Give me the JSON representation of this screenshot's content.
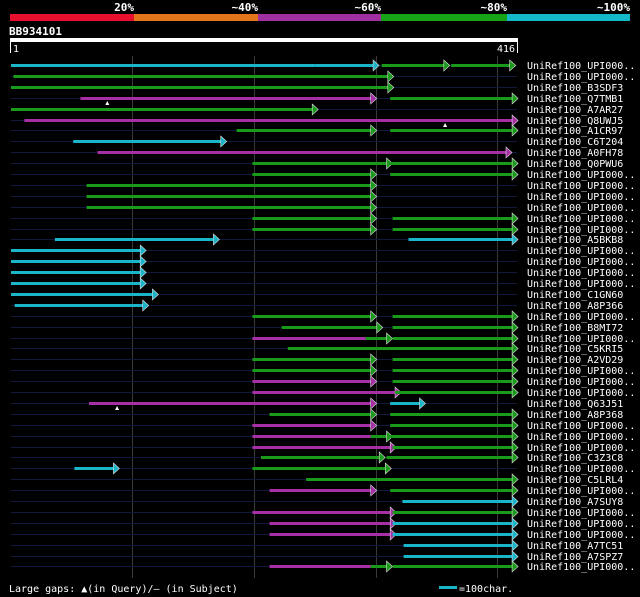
{
  "header": {
    "pct_labels": [
      "20%",
      "~40%",
      "~60%",
      "~80%",
      "~100%"
    ],
    "pct_colors": [
      "#e8102e",
      "#e3761a",
      "#a02fa0",
      "#17a317",
      "#13b8c9"
    ],
    "query_id": "BB934101",
    "start": "1",
    "end": "416"
  },
  "query_length": 416,
  "colors": {
    "red": "#e8102e",
    "orange": "#e3761a",
    "magenta": "#a62fa6",
    "green": "#1a9a1a",
    "cyan": "#1bb5c9",
    "track": "#101840"
  },
  "rows": [
    {
      "label": "UniRef100_UPI000..",
      "segs": [
        {
          "s": 1,
          "e": 251,
          "c": "cyan"
        },
        {
          "s": 251,
          "e": 298,
          "c": "cyan",
          "arrow": 1
        },
        {
          "s": 305,
          "e": 356,
          "c": "green",
          "arrow": 1
        },
        {
          "s": 362,
          "e": 410,
          "c": "green",
          "arrow": 1
        }
      ],
      "gaps": []
    },
    {
      "label": "UniRef100_UPI000..",
      "segs": [
        {
          "s": 3,
          "e": 310,
          "c": "green",
          "arrow": 1
        }
      ],
      "gaps": []
    },
    {
      "label": "UniRef100_B3SDF3",
      "segs": [
        {
          "s": 1,
          "e": 310,
          "c": "green",
          "arrow": 1
        }
      ],
      "gaps": []
    },
    {
      "label": "UniRef100_Q7TMB1",
      "segs": [
        {
          "s": 58,
          "e": 296,
          "c": "magenta",
          "arrow": 1
        },
        {
          "s": 312,
          "e": 412,
          "c": "green",
          "arrow": 1
        }
      ],
      "gaps": [
        {
          "pos": 80,
          "type": "q"
        }
      ]
    },
    {
      "label": "UniRef100_A7AR27",
      "segs": [
        {
          "s": 1,
          "e": 248,
          "c": "green",
          "arrow": 1
        }
      ],
      "gaps": []
    },
    {
      "label": "UniRef100_Q8UWJ5",
      "segs": [
        {
          "s": 12,
          "e": 412,
          "c": "magenta",
          "arrow": 1
        }
      ],
      "gaps": [
        {
          "pos": 357,
          "type": "q"
        }
      ]
    },
    {
      "label": "UniRef100_A1CR97",
      "segs": [
        {
          "s": 186,
          "e": 296,
          "c": "green",
          "arrow": 1
        },
        {
          "s": 312,
          "e": 412,
          "c": "green",
          "arrow": 1
        }
      ],
      "gaps": []
    },
    {
      "label": "UniRef100_C6T204",
      "segs": [
        {
          "s": 52,
          "e": 173,
          "c": "cyan",
          "arrow": 1
        }
      ],
      "gaps": []
    },
    {
      "label": "UniRef100_A0FH78",
      "segs": [
        {
          "s": 72,
          "e": 407,
          "c": "magenta",
          "arrow": 1
        }
      ],
      "gaps": []
    },
    {
      "label": "UniRef100_Q0PWU6",
      "segs": [
        {
          "s": 199,
          "e": 309,
          "c": "green",
          "arrow": 1
        },
        {
          "s": 312,
          "e": 412,
          "c": "green",
          "arrow": 1
        }
      ],
      "gaps": []
    },
    {
      "label": "UniRef100_UPI000..",
      "segs": [
        {
          "s": 199,
          "e": 296,
          "c": "green",
          "arrow": 1
        },
        {
          "s": 312,
          "e": 412,
          "c": "green",
          "arrow": 1
        }
      ],
      "gaps": []
    },
    {
      "label": "UniRef100_UPI000..",
      "segs": [
        {
          "s": 63,
          "e": 296,
          "c": "green",
          "arrow": 1
        }
      ],
      "gaps": []
    },
    {
      "label": "UniRef100_UPI000..",
      "segs": [
        {
          "s": 63,
          "e": 296,
          "c": "green",
          "arrow": 1
        }
      ],
      "gaps": []
    },
    {
      "label": "UniRef100_UPI000..",
      "segs": [
        {
          "s": 63,
          "e": 296,
          "c": "green",
          "arrow": 1
        }
      ],
      "gaps": []
    },
    {
      "label": "UniRef100_UPI000..",
      "segs": [
        {
          "s": 199,
          "e": 296,
          "c": "green",
          "arrow": 1
        },
        {
          "s": 314,
          "e": 412,
          "c": "green",
          "arrow": 1
        }
      ],
      "gaps": []
    },
    {
      "label": "UniRef100_UPI000..",
      "segs": [
        {
          "s": 199,
          "e": 296,
          "c": "green",
          "arrow": 1
        },
        {
          "s": 314,
          "e": 412,
          "c": "green",
          "arrow": 1
        }
      ],
      "gaps": []
    },
    {
      "label": "UniRef100_A5BKB8",
      "segs": [
        {
          "s": 37,
          "e": 167,
          "c": "cyan",
          "arrow": 1
        },
        {
          "s": 327,
          "e": 412,
          "c": "cyan",
          "arrow": 1
        }
      ],
      "gaps": []
    },
    {
      "label": "UniRef100_UPI000..",
      "segs": [
        {
          "s": 1,
          "e": 107,
          "c": "cyan",
          "arrow": 1
        }
      ],
      "gaps": []
    },
    {
      "label": "UniRef100_UPI000..",
      "segs": [
        {
          "s": 1,
          "e": 107,
          "c": "cyan",
          "arrow": 1
        }
      ],
      "gaps": []
    },
    {
      "label": "UniRef100_UPI000..",
      "segs": [
        {
          "s": 1,
          "e": 107,
          "c": "cyan",
          "arrow": 1
        }
      ],
      "gaps": []
    },
    {
      "label": "UniRef100_UPI000..",
      "segs": [
        {
          "s": 1,
          "e": 107,
          "c": "cyan",
          "arrow": 1
        }
      ],
      "gaps": []
    },
    {
      "label": "UniRef100_C1GN60",
      "segs": [
        {
          "s": 1,
          "e": 117,
          "c": "cyan",
          "arrow": 1
        }
      ],
      "gaps": []
    },
    {
      "label": "UniRef100_A8P366",
      "segs": [
        {
          "s": 4,
          "e": 109,
          "c": "cyan",
          "arrow": 1
        }
      ],
      "gaps": []
    },
    {
      "label": "UniRef100_UPI000..",
      "segs": [
        {
          "s": 199,
          "e": 296,
          "c": "green",
          "arrow": 1
        },
        {
          "s": 314,
          "e": 412,
          "c": "green",
          "arrow": 1
        }
      ],
      "gaps": []
    },
    {
      "label": "UniRef100_B8MI72",
      "segs": [
        {
          "s": 223,
          "e": 301,
          "c": "green",
          "arrow": 1
        },
        {
          "s": 314,
          "e": 412,
          "c": "green",
          "arrow": 1
        }
      ],
      "gaps": []
    },
    {
      "label": "UniRef100_UPI000..",
      "segs": [
        {
          "s": 199,
          "e": 292,
          "c": "magenta"
        },
        {
          "s": 292,
          "e": 309,
          "c": "green",
          "arrow": 1
        },
        {
          "s": 314,
          "e": 412,
          "c": "green",
          "arrow": 1
        }
      ],
      "gaps": []
    },
    {
      "label": "UniRef100_C5KRI5",
      "segs": [
        {
          "s": 228,
          "e": 412,
          "c": "green",
          "arrow": 1
        }
      ],
      "gaps": []
    },
    {
      "label": "UniRef100_A2VD29",
      "segs": [
        {
          "s": 199,
          "e": 296,
          "c": "green",
          "arrow": 1
        },
        {
          "s": 314,
          "e": 412,
          "c": "green",
          "arrow": 1
        }
      ],
      "gaps": []
    },
    {
      "label": "UniRef100_UPI000..",
      "segs": [
        {
          "s": 199,
          "e": 296,
          "c": "green",
          "arrow": 1
        },
        {
          "s": 314,
          "e": 412,
          "c": "green",
          "arrow": 1
        }
      ],
      "gaps": []
    },
    {
      "label": "UniRef100_UPI000..",
      "segs": [
        {
          "s": 199,
          "e": 296,
          "c": "magenta",
          "arrow": 1
        },
        {
          "s": 314,
          "e": 412,
          "c": "green",
          "arrow": 1
        }
      ],
      "gaps": []
    },
    {
      "label": "UniRef100_UPI000..",
      "segs": [
        {
          "s": 199,
          "e": 316,
          "c": "magenta",
          "arrow": 1
        },
        {
          "s": 316,
          "e": 412,
          "c": "green",
          "arrow": 1
        }
      ],
      "gaps": []
    },
    {
      "label": "UniRef100_Q63J51",
      "segs": [
        {
          "s": 65,
          "e": 296,
          "c": "magenta",
          "arrow": 1
        },
        {
          "s": 312,
          "e": 336,
          "c": "cyan",
          "arrow": 1
        }
      ],
      "gaps": [
        {
          "pos": 88,
          "type": "q"
        }
      ]
    },
    {
      "label": "UniRef100_A8P368",
      "segs": [
        {
          "s": 213,
          "e": 296,
          "c": "green",
          "arrow": 1
        },
        {
          "s": 312,
          "e": 412,
          "c": "green",
          "arrow": 1
        }
      ],
      "gaps": []
    },
    {
      "label": "UniRef100_UPI000..",
      "segs": [
        {
          "s": 199,
          "e": 296,
          "c": "magenta",
          "arrow": 1
        },
        {
          "s": 312,
          "e": 412,
          "c": "green",
          "arrow": 1
        }
      ],
      "gaps": []
    },
    {
      "label": "UniRef100_UPI000..",
      "segs": [
        {
          "s": 199,
          "e": 296,
          "c": "magenta"
        },
        {
          "s": 296,
          "e": 309,
          "c": "green",
          "arrow": 1
        },
        {
          "s": 312,
          "e": 412,
          "c": "green",
          "arrow": 1
        }
      ],
      "gaps": []
    },
    {
      "label": "UniRef100_UPI000..",
      "segs": [
        {
          "s": 199,
          "e": 296,
          "c": "magenta"
        },
        {
          "s": 296,
          "e": 312,
          "c": "magenta",
          "arrow": 1
        },
        {
          "s": 314,
          "e": 412,
          "c": "green",
          "arrow": 1
        }
      ],
      "gaps": []
    },
    {
      "label": "UniRef100_C3Z3C8",
      "segs": [
        {
          "s": 206,
          "e": 303,
          "c": "green",
          "arrow": 1
        },
        {
          "s": 309,
          "e": 412,
          "c": "green",
          "arrow": 1
        }
      ],
      "gaps": []
    },
    {
      "label": "UniRef100_UPI000..",
      "segs": [
        {
          "s": 53,
          "e": 85,
          "c": "cyan",
          "arrow": 1
        },
        {
          "s": 199,
          "e": 308,
          "c": "green",
          "arrow": 1
        }
      ],
      "gaps": []
    },
    {
      "label": "UniRef100_C5LRL4",
      "segs": [
        {
          "s": 243,
          "e": 412,
          "c": "green",
          "arrow": 1
        }
      ],
      "gaps": []
    },
    {
      "label": "UniRef100_UPI000..",
      "segs": [
        {
          "s": 213,
          "e": 296,
          "c": "magenta",
          "arrow": 1
        },
        {
          "s": 312,
          "e": 412,
          "c": "green",
          "arrow": 1
        }
      ],
      "gaps": []
    },
    {
      "label": "UniRef100_A7SUY8",
      "segs": [
        {
          "s": 322,
          "e": 412,
          "c": "cyan",
          "arrow": 1
        }
      ],
      "gaps": []
    },
    {
      "label": "UniRef100_UPI000..",
      "segs": [
        {
          "s": 199,
          "e": 312,
          "c": "magenta",
          "arrow": 1
        },
        {
          "s": 314,
          "e": 412,
          "c": "green",
          "arrow": 1
        }
      ],
      "gaps": []
    },
    {
      "label": "UniRef100_UPI000..",
      "segs": [
        {
          "s": 213,
          "e": 312,
          "c": "magenta",
          "arrow": 1
        },
        {
          "s": 314,
          "e": 412,
          "c": "cyan",
          "arrow": 1
        }
      ],
      "gaps": []
    },
    {
      "label": "UniRef100_UPI000..",
      "segs": [
        {
          "s": 213,
          "e": 312,
          "c": "magenta",
          "arrow": 1
        },
        {
          "s": 314,
          "e": 412,
          "c": "cyan",
          "arrow": 1
        }
      ],
      "gaps": []
    },
    {
      "label": "UniRef100_A7TC51",
      "segs": [
        {
          "s": 323,
          "e": 412,
          "c": "cyan",
          "arrow": 1
        }
      ],
      "gaps": []
    },
    {
      "label": "UniRef100_A7SPZ7",
      "segs": [
        {
          "s": 323,
          "e": 412,
          "c": "cyan",
          "arrow": 1
        }
      ],
      "gaps": []
    },
    {
      "label": "UniRef100_UPI000..",
      "segs": [
        {
          "s": 213,
          "e": 296,
          "c": "magenta"
        },
        {
          "s": 296,
          "e": 309,
          "c": "green",
          "arrow": 1
        },
        {
          "s": 314,
          "e": 412,
          "c": "green",
          "arrow": 1
        }
      ],
      "gaps": []
    }
  ],
  "footer": {
    "legend": "Large gaps: ▲(in Query)/– (in Subject)",
    "scale_label": "=100char."
  }
}
